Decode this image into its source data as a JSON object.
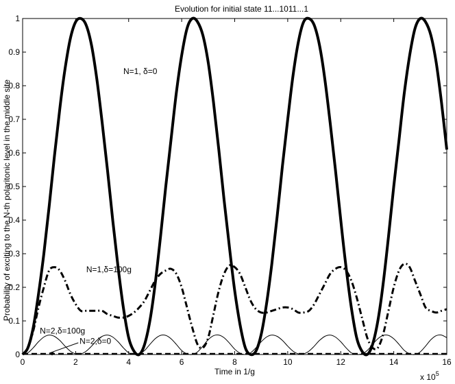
{
  "chart_data": {
    "type": "line",
    "title": "Evolution for initial state 11...1011...1",
    "xlabel": "Time in 1/g",
    "ylabel": "Probability of exciting to the N-th polaritonic level in the middle site",
    "x_multiplier": "x 10",
    "x_multiplier_exp": "5",
    "xlim": [
      0,
      16
    ],
    "ylim": [
      0,
      1
    ],
    "xticks": [
      "0",
      "2",
      "4",
      "6",
      "8",
      "10",
      "12",
      "14",
      "16"
    ],
    "yticks": [
      "0",
      "0.1",
      "0.2",
      "0.3",
      "0.4",
      "0.5",
      "0.6",
      "0.7",
      "0.8",
      "0.9",
      "1"
    ],
    "grid": false,
    "series": [
      {
        "name": "N=1, δ=0",
        "color": "#000000",
        "style": "solid-thick",
        "x": [
          0,
          0.2,
          0.4,
          0.6,
          0.8,
          1.0,
          1.2,
          1.4,
          1.6,
          1.8,
          2.0,
          2.2,
          2.4,
          2.6,
          2.8,
          3.0,
          3.2,
          3.4,
          3.6,
          3.8,
          4.0,
          4.2,
          4.4,
          4.6,
          4.8,
          5.0,
          5.2,
          5.4,
          5.6,
          5.8,
          6.0,
          6.2,
          6.4,
          6.6,
          6.8,
          7.0,
          7.2,
          7.4,
          7.6,
          7.8,
          8.0,
          8.2,
          8.4,
          8.6,
          8.8,
          9.0,
          9.2,
          9.4,
          9.6,
          9.8,
          10.0,
          10.2,
          10.4,
          10.6,
          10.8,
          11.0,
          11.2,
          11.4,
          11.6,
          11.8,
          12.0,
          12.2,
          12.4,
          12.6,
          12.8,
          13.0,
          13.2,
          13.4,
          13.6,
          13.8,
          14.0,
          14.2,
          14.4,
          14.6,
          14.8,
          15.0,
          15.2,
          15.4,
          15.6,
          15.8,
          16.0
        ],
        "values": [
          0,
          0.02,
          0.08,
          0.18,
          0.3,
          0.44,
          0.59,
          0.73,
          0.85,
          0.94,
          0.99,
          1.0,
          0.98,
          0.92,
          0.82,
          0.69,
          0.55,
          0.4,
          0.26,
          0.14,
          0.05,
          0.01,
          0.0,
          0.03,
          0.1,
          0.21,
          0.35,
          0.5,
          0.64,
          0.78,
          0.89,
          0.97,
          1.0,
          0.99,
          0.95,
          0.87,
          0.75,
          0.61,
          0.46,
          0.32,
          0.19,
          0.09,
          0.02,
          0.0,
          0.01,
          0.06,
          0.15,
          0.27,
          0.41,
          0.56,
          0.7,
          0.83,
          0.93,
          0.99,
          1.0,
          0.98,
          0.92,
          0.82,
          0.69,
          0.55,
          0.4,
          0.26,
          0.14,
          0.05,
          0.01,
          0.0,
          0.03,
          0.1,
          0.21,
          0.35,
          0.5,
          0.64,
          0.78,
          0.89,
          0.97,
          1.0,
          0.99,
          0.95,
          0.87,
          0.75,
          0.61
        ],
        "label_pos": [
          3.8,
          0.843
        ]
      },
      {
        "name": "N=1,δ=100g",
        "color": "#000000",
        "style": "dashdot-thick",
        "x": [
          0,
          0.2,
          0.4,
          0.6,
          0.8,
          1.0,
          1.2,
          1.4,
          1.6,
          1.8,
          2.0,
          2.2,
          2.4,
          2.6,
          2.8,
          3.0,
          3.2,
          3.4,
          3.6,
          3.8,
          4.0,
          4.2,
          4.4,
          4.6,
          4.8,
          5.0,
          5.2,
          5.4,
          5.6,
          5.8,
          6.0,
          6.2,
          6.4,
          6.6,
          6.8,
          7.0,
          7.2,
          7.4,
          7.6,
          7.8,
          8.0,
          8.2,
          8.4,
          8.6,
          8.8,
          9.0,
          9.2,
          9.4,
          9.6,
          9.8,
          10.0,
          10.2,
          10.4,
          10.6,
          10.8,
          11.0,
          11.2,
          11.4,
          11.6,
          11.8,
          12.0,
          12.2,
          12.4,
          12.6,
          12.8,
          13.0,
          13.2,
          13.4,
          13.6,
          13.8,
          14.0,
          14.2,
          14.4,
          14.6,
          14.8,
          15.0,
          15.2,
          15.4,
          15.6,
          15.8,
          16.0
        ],
        "values": [
          0,
          0.02,
          0.07,
          0.14,
          0.2,
          0.25,
          0.26,
          0.25,
          0.22,
          0.18,
          0.15,
          0.13,
          0.13,
          0.13,
          0.13,
          0.13,
          0.12,
          0.115,
          0.11,
          0.11,
          0.115,
          0.125,
          0.14,
          0.16,
          0.19,
          0.22,
          0.24,
          0.25,
          0.255,
          0.24,
          0.2,
          0.14,
          0.08,
          0.03,
          0.02,
          0.05,
          0.12,
          0.19,
          0.24,
          0.265,
          0.26,
          0.24,
          0.2,
          0.16,
          0.135,
          0.125,
          0.125,
          0.13,
          0.135,
          0.14,
          0.14,
          0.135,
          0.125,
          0.125,
          0.13,
          0.15,
          0.18,
          0.21,
          0.24,
          0.255,
          0.26,
          0.25,
          0.22,
          0.17,
          0.11,
          0.05,
          0.02,
          0.02,
          0.06,
          0.13,
          0.2,
          0.25,
          0.27,
          0.26,
          0.22,
          0.18,
          0.14,
          0.13,
          0.125,
          0.13,
          0.135
        ],
        "label_pos": [
          2.4,
          0.253
        ]
      },
      {
        "name": "N=2,δ=100g",
        "color": "#000000",
        "style": "solid-thin",
        "x": [
          0,
          0.2,
          0.4,
          0.6,
          0.8,
          1.0,
          1.2,
          1.4,
          1.6,
          1.8,
          2.0,
          2.2,
          2.4,
          2.6,
          2.8,
          3.0,
          3.2,
          3.4,
          3.6,
          3.8,
          4.0,
          4.2,
          4.4,
          4.6,
          4.8,
          5.0,
          5.2,
          5.4,
          5.6,
          5.8,
          6.0,
          6.2,
          6.4,
          6.6,
          6.8,
          7.0,
          7.2,
          7.4,
          7.6,
          7.8,
          8.0,
          8.2,
          8.4,
          8.6,
          8.8,
          9.0,
          9.2,
          9.4,
          9.6,
          9.8,
          10.0,
          10.2,
          10.4,
          10.6,
          10.8,
          11.0,
          11.2,
          11.4,
          11.6,
          11.8,
          12.0,
          12.2,
          12.4,
          12.6,
          12.8,
          13.0,
          13.2,
          13.4,
          13.6,
          13.8,
          14.0,
          14.2,
          14.4,
          14.6,
          14.8,
          15.0,
          15.2,
          15.4,
          15.6,
          15.8,
          16.0
        ],
        "values": [
          0,
          0.005,
          0.02,
          0.038,
          0.052,
          0.058,
          0.054,
          0.042,
          0.025,
          0.01,
          0.002,
          0.002,
          0.01,
          0.025,
          0.042,
          0.054,
          0.058,
          0.052,
          0.038,
          0.02,
          0.005,
          0,
          0.002,
          0.012,
          0.03,
          0.047,
          0.057,
          0.057,
          0.047,
          0.03,
          0.012,
          0.002,
          0,
          0.008,
          0.025,
          0.044,
          0.056,
          0.058,
          0.05,
          0.034,
          0.016,
          0.004,
          0,
          0.005,
          0.02,
          0.038,
          0.052,
          0.058,
          0.054,
          0.042,
          0.025,
          0.01,
          0.002,
          0.002,
          0.01,
          0.025,
          0.042,
          0.054,
          0.058,
          0.052,
          0.038,
          0.02,
          0.005,
          0,
          0.002,
          0.012,
          0.03,
          0.047,
          0.057,
          0.057,
          0.047,
          0.03,
          0.012,
          0.002,
          0,
          0.008,
          0.025,
          0.044,
          0.056,
          0.058,
          0.05
        ],
        "label_pos": [
          0.65,
          0.07
        ]
      },
      {
        "name": "N=2,δ=0",
        "color": "#000000",
        "style": "dashed-thick",
        "x": [
          0,
          16
        ],
        "values": [
          0.002,
          0.002
        ],
        "label_pos": [
          2.15,
          0.04
        ]
      }
    ]
  }
}
